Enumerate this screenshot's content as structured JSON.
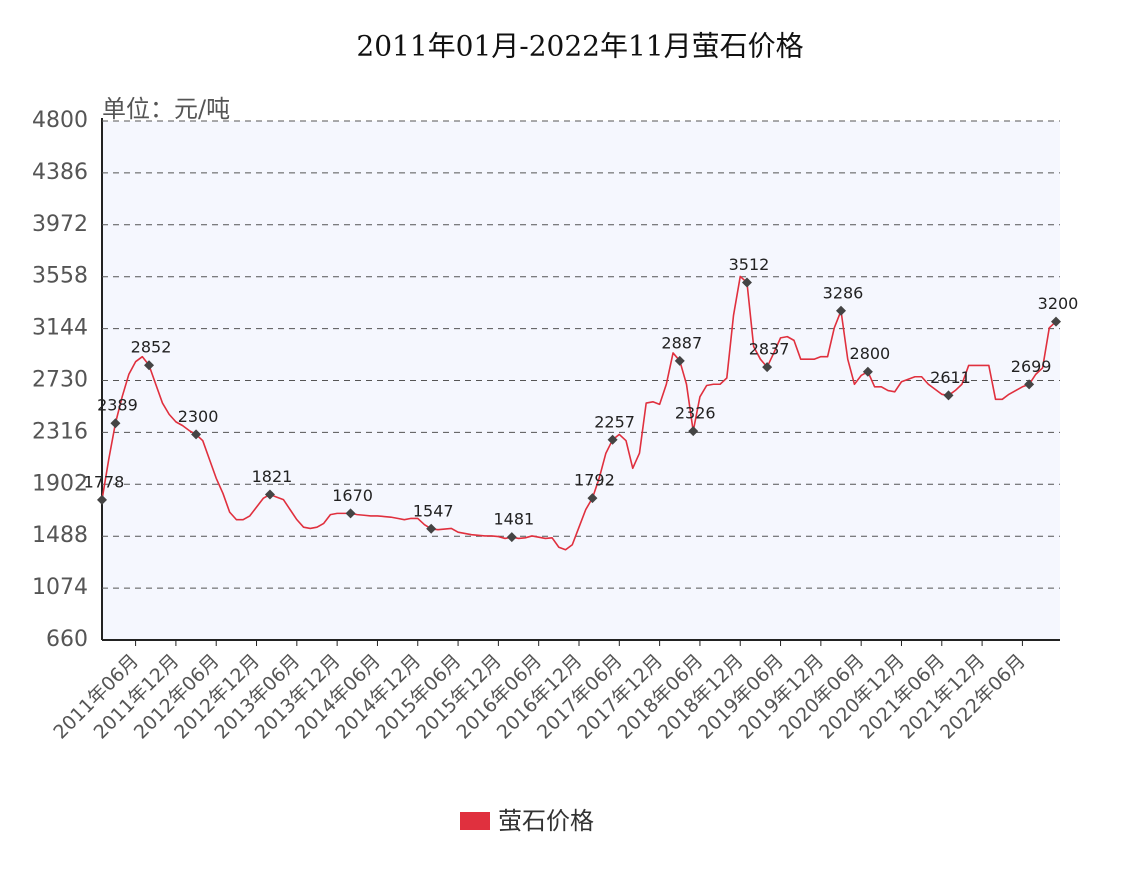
{
  "chart_data": {
    "type": "line",
    "title": "2011年01月-2022年11月萤石价格",
    "y_label": "单位：元/吨",
    "categories": [
      null,
      null,
      null,
      null,
      null,
      "2011年06月",
      null,
      null,
      null,
      null,
      null,
      "2011年12月",
      null,
      null,
      null,
      null,
      null,
      "2012年06月",
      null,
      null,
      null,
      null,
      null,
      "2012年12月",
      null,
      null,
      null,
      null,
      null,
      "2013年06月",
      null,
      null,
      null,
      null,
      null,
      "2013年12月",
      null,
      null,
      null,
      null,
      null,
      "2014年06月",
      null,
      null,
      null,
      null,
      null,
      "2014年12月",
      null,
      null,
      null,
      null,
      null,
      "2015年06月",
      null,
      null,
      null,
      null,
      null,
      "2015年12月",
      null,
      null,
      null,
      null,
      null,
      "2016年06月",
      null,
      null,
      null,
      null,
      null,
      "2016年12月",
      null,
      null,
      null,
      null,
      null,
      "2017年06月",
      null,
      null,
      null,
      null,
      null,
      "2017年12月",
      null,
      null,
      null,
      null,
      null,
      "2018年06月",
      null,
      null,
      null,
      null,
      null,
      "2018年12月",
      null,
      null,
      null,
      null,
      null,
      "2019年06月",
      null,
      null,
      null,
      null,
      null,
      "2019年12月",
      null,
      null,
      null,
      null,
      null,
      "2020年06月",
      null,
      null,
      null,
      null,
      null,
      "2020年12月",
      null,
      null,
      null,
      null,
      null,
      "2021年06月",
      null,
      null,
      null,
      null,
      null,
      "2021年12月",
      null,
      null,
      null,
      null,
      null,
      "2022年06月",
      null,
      null,
      null,
      null,
      null
    ],
    "series": [
      {
        "name": "萤石价格",
        "color": "#e0303e",
        "values": [
          1778,
          2100,
          2389,
          2600,
          2780,
          2880,
          2920,
          2852,
          2700,
          2550,
          2460,
          2400,
          2370,
          2330,
          2300,
          2250,
          2100,
          1950,
          1830,
          1680,
          1620,
          1620,
          1650,
          1720,
          1790,
          1821,
          1800,
          1780,
          1700,
          1620,
          1560,
          1550,
          1560,
          1590,
          1660,
          1670,
          1670,
          1670,
          1660,
          1655,
          1650,
          1650,
          1645,
          1640,
          1630,
          1620,
          1630,
          1630,
          1580,
          1547,
          1540,
          1545,
          1550,
          1520,
          1510,
          1500,
          1495,
          1490,
          1490,
          1485,
          1470,
          1481,
          1470,
          1475,
          1490,
          1480,
          1470,
          1475,
          1400,
          1380,
          1420,
          1560,
          1700,
          1792,
          1950,
          2150,
          2257,
          2300,
          2250,
          2030,
          2150,
          2550,
          2560,
          2540,
          2700,
          2950,
          2887,
          2700,
          2326,
          2600,
          2690,
          2700,
          2700,
          2750,
          3250,
          3560,
          3512,
          3000,
          2900,
          2837,
          2950,
          3070,
          3080,
          3050,
          2900,
          2900,
          2900,
          2920,
          2920,
          3150,
          3286,
          2900,
          2700,
          2770,
          2800,
          2680,
          2680,
          2650,
          2640,
          2720,
          2740,
          2760,
          2760,
          2700,
          2660,
          2620,
          2611,
          2650,
          2700,
          2850,
          2850,
          2850,
          2850,
          2580,
          2580,
          2620,
          2650,
          2680,
          2699,
          2780,
          2830,
          3150,
          3200
        ],
        "value_labels": [
          "1778",
          null,
          "2389",
          null,
          null,
          null,
          null,
          "2852",
          null,
          null,
          null,
          null,
          null,
          null,
          "2300",
          null,
          null,
          null,
          null,
          null,
          null,
          null,
          null,
          null,
          null,
          "1821",
          null,
          null,
          null,
          null,
          null,
          null,
          null,
          null,
          null,
          null,
          null,
          "1670",
          null,
          null,
          null,
          null,
          null,
          null,
          null,
          null,
          null,
          null,
          null,
          "1547",
          null,
          null,
          null,
          null,
          null,
          null,
          null,
          null,
          null,
          null,
          null,
          "1481",
          null,
          null,
          null,
          null,
          null,
          null,
          null,
          null,
          null,
          null,
          null,
          "1792",
          null,
          null,
          "2257",
          null,
          null,
          null,
          null,
          null,
          null,
          null,
          null,
          null,
          "2887",
          null,
          "2326",
          null,
          null,
          null,
          null,
          null,
          null,
          null,
          "3512",
          null,
          null,
          "2837",
          null,
          null,
          null,
          null,
          null,
          null,
          null,
          null,
          null,
          null,
          "3286",
          null,
          null,
          null,
          "2800",
          null,
          null,
          null,
          null,
          null,
          null,
          null,
          null,
          null,
          null,
          null,
          "2611",
          null,
          null,
          null,
          null,
          null,
          null,
          null,
          null,
          null,
          null,
          null,
          "2699",
          null,
          null,
          null,
          "3200"
        ]
      }
    ],
    "ylim": [
      660,
      4800
    ],
    "yticks": [
      660,
      1074,
      1488,
      1902,
      2316,
      2730,
      3144,
      3558,
      3972,
      4386,
      4800
    ],
    "grid": true,
    "legend": "bottom"
  }
}
